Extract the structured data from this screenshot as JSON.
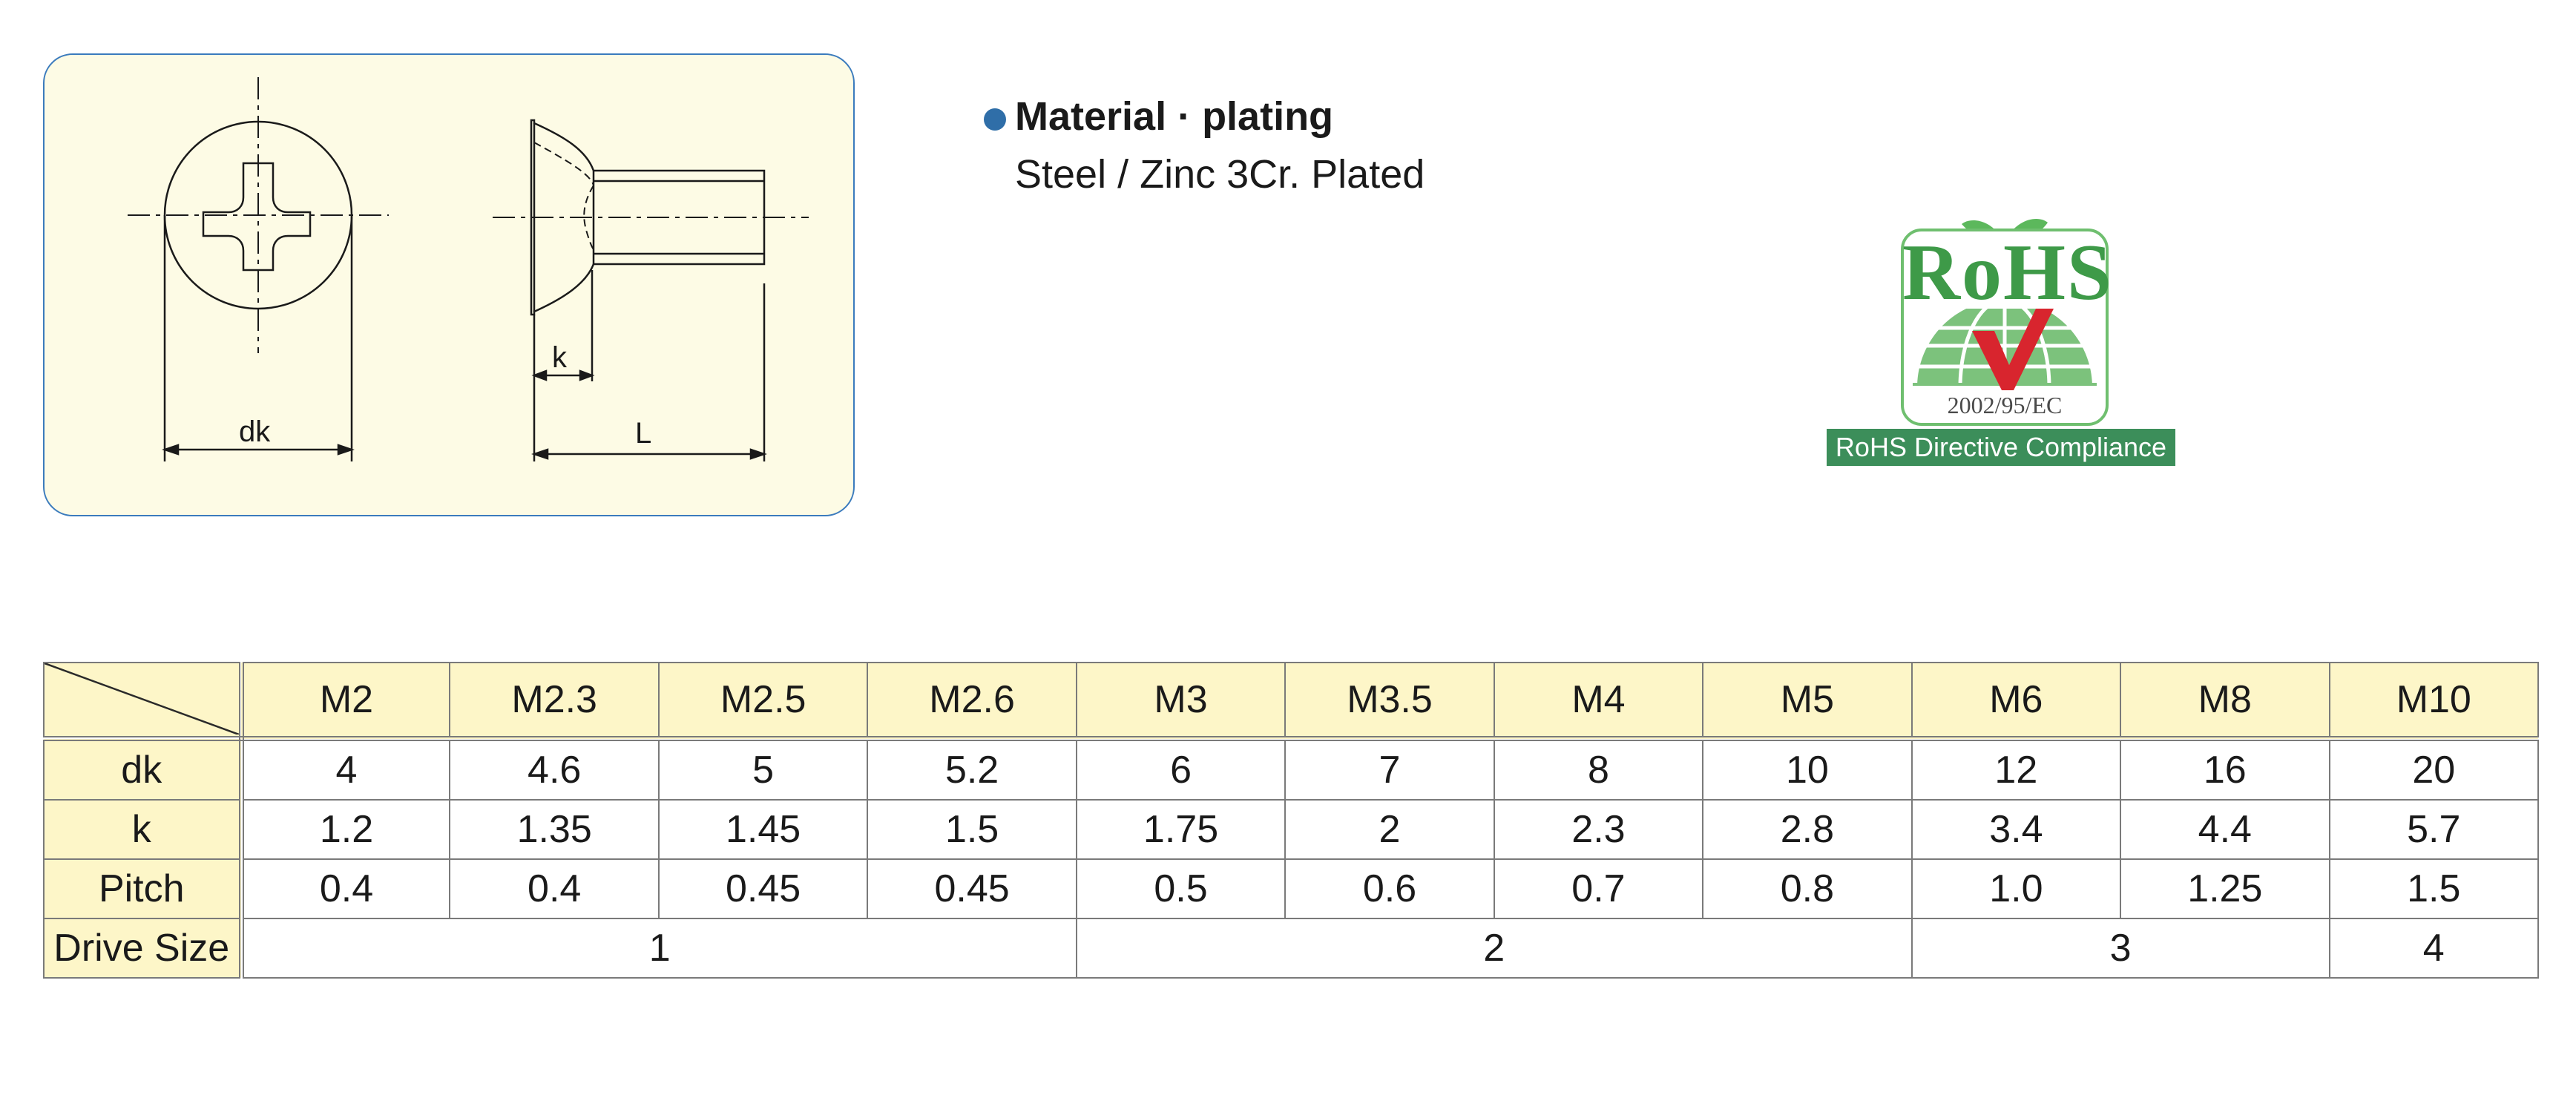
{
  "drawing": {
    "dk_label": "dk",
    "k_label": "k",
    "L_label": "L"
  },
  "material": {
    "title": "Material · plating",
    "value": "Steel / Zinc 3Cr. Plated"
  },
  "rohs": {
    "word": "RoHS",
    "code": "2002/95/EC",
    "band": "RoHS Directive Compliance"
  },
  "table": {
    "sizes": [
      "M2",
      "M2.3",
      "M2.5",
      "M2.6",
      "M3",
      "M3.5",
      "M4",
      "M5",
      "M6",
      "M8",
      "M10"
    ],
    "rows": [
      {
        "label": "dk",
        "values": [
          "4",
          "4.6",
          "5",
          "5.2",
          "6",
          "7",
          "8",
          "10",
          "12",
          "16",
          "20"
        ]
      },
      {
        "label": "k",
        "values": [
          "1.2",
          "1.35",
          "1.45",
          "1.5",
          "1.75",
          "2",
          "2.3",
          "2.8",
          "3.4",
          "4.4",
          "5.7"
        ]
      },
      {
        "label": "Pitch",
        "values": [
          "0.4",
          "0.4",
          "0.45",
          "0.45",
          "0.5",
          "0.6",
          "0.7",
          "0.8",
          "1.0",
          "1.25",
          "1.5"
        ]
      }
    ],
    "drive": {
      "label": "Drive Size",
      "groups": [
        {
          "value": "1",
          "span": 4
        },
        {
          "value": "2",
          "span": 4
        },
        {
          "value": "3",
          "span": 2
        },
        {
          "value": "4",
          "span": 1
        }
      ]
    }
  }
}
